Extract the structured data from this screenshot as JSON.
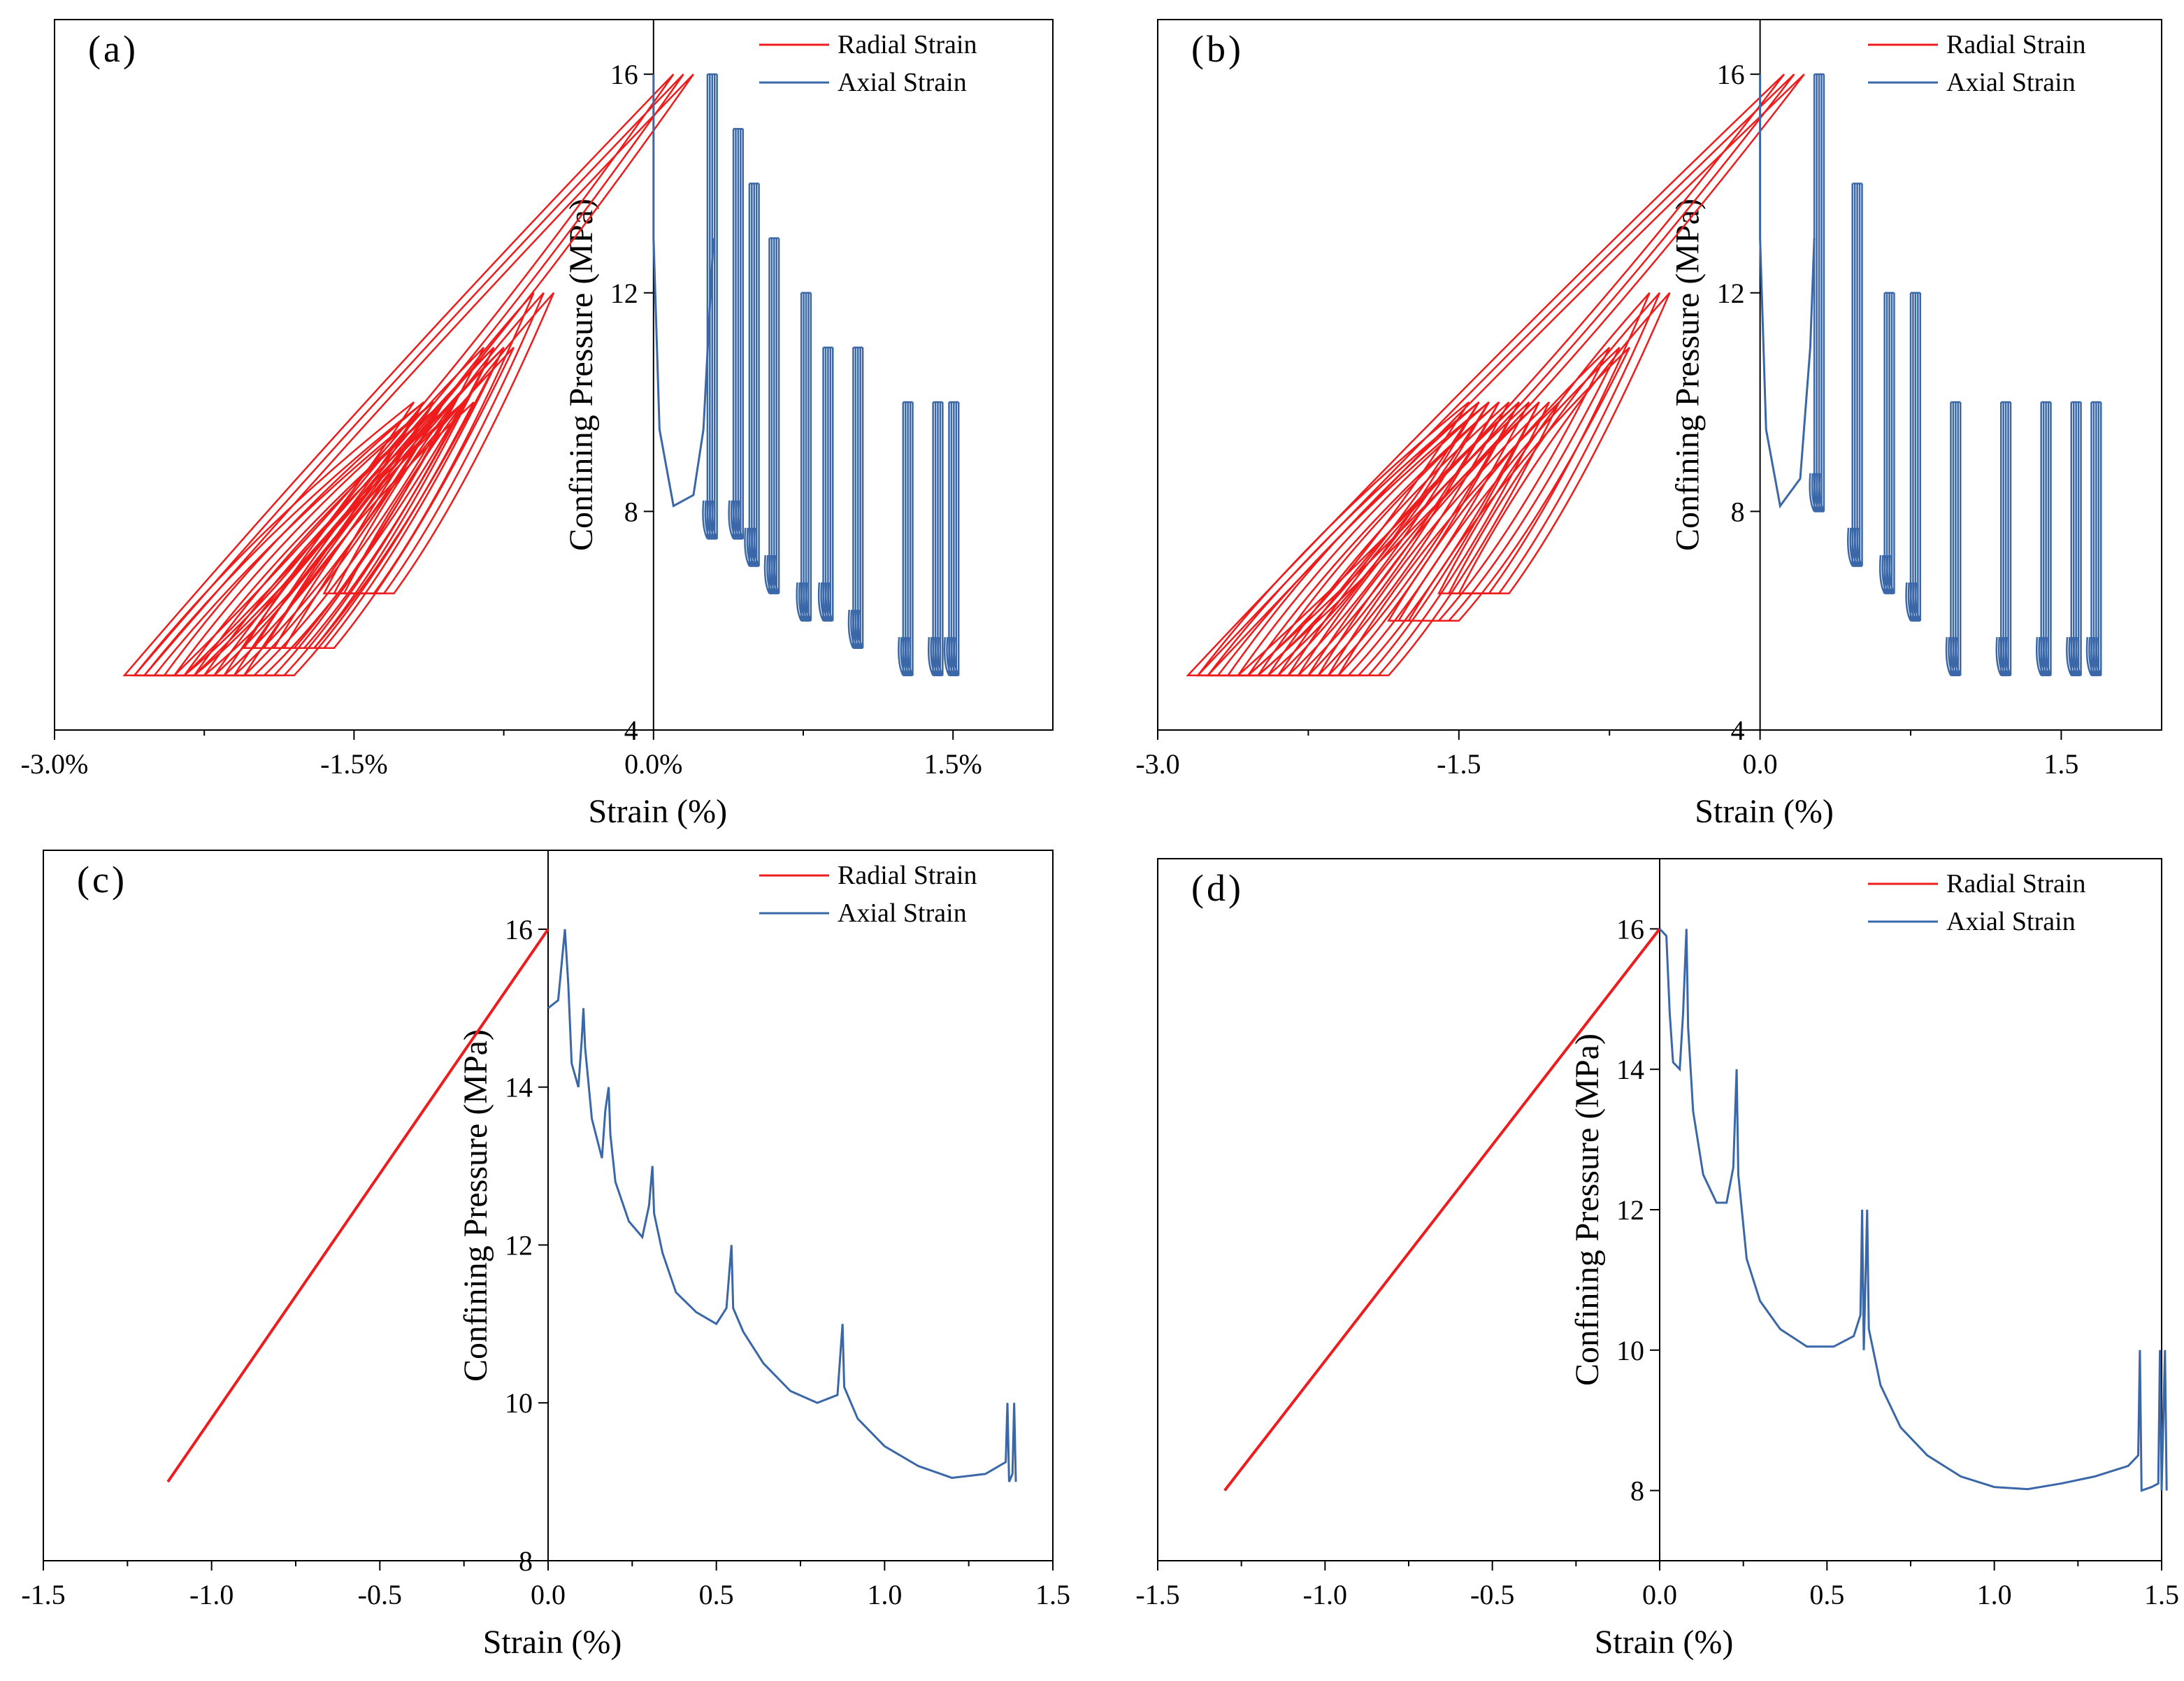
{
  "figure_caption": "",
  "chart_data": [
    {
      "panel_label": "(a)",
      "type": "line",
      "xlabel": "Strain (%)",
      "ylabel": "Confining Pressure (MPa)",
      "xlim": [
        -3.0,
        2.0
      ],
      "ylim": [
        4,
        17
      ],
      "xticks": [
        {
          "value": -3.0,
          "label": "-3.0%"
        },
        {
          "value": -1.5,
          "label": "-1.5%"
        },
        {
          "value": 0.0,
          "label": "0.0%"
        },
        {
          "value": 1.5,
          "label": "1.5%"
        }
      ],
      "yticks": [
        {
          "value": 4,
          "label": "4"
        },
        {
          "value": 8,
          "label": "8"
        },
        {
          "value": 12,
          "label": "12"
        },
        {
          "value": 16,
          "label": "16"
        }
      ],
      "colors": {
        "radial": "#ee1c1c",
        "axial": "#3a67a8"
      },
      "legend": {
        "position": "top-right",
        "entries": [
          "Radial Strain",
          "Axial Strain"
        ]
      },
      "series": [
        {
          "name": "Radial Strain",
          "cycles": [
            {
              "low": 5,
              "high": 16,
              "x_low": -2.65,
              "x_high": 0.1
            },
            {
              "low": 5,
              "high": 10,
              "x_low": -2.6,
              "x_high": -1.2
            },
            {
              "low": 5,
              "high": 10,
              "x_low": -2.45,
              "x_high": -1.15
            },
            {
              "low": 5,
              "high": 10,
              "x_low": -2.3,
              "x_high": -1.05
            },
            {
              "low": 5,
              "high": 10,
              "x_low": -2.15,
              "x_high": -1.0
            },
            {
              "low": 5.5,
              "high": 11,
              "x_low": -2.05,
              "x_high": -0.85
            },
            {
              "low": 5.5,
              "high": 11,
              "x_low": -1.95,
              "x_high": -0.8
            },
            {
              "low": 6.5,
              "high": 12,
              "x_low": -1.65,
              "x_high": -0.6
            }
          ]
        },
        {
          "name": "Axial Strain",
          "curve": [
            [
              0.0,
              16
            ],
            [
              0.0,
              13
            ],
            [
              0.03,
              9.5
            ],
            [
              0.1,
              8.1
            ],
            [
              0.2,
              8.3
            ],
            [
              0.25,
              9.5
            ],
            [
              0.3,
              13
            ]
          ],
          "cycles": [
            {
              "low": 7.5,
              "high": 16,
              "x_low": 0.27,
              "x_high": 0.32
            },
            {
              "low": 7.5,
              "high": 15,
              "x_low": 0.4,
              "x_high": 0.38
            },
            {
              "low": 7.0,
              "high": 14,
              "x_low": 0.48,
              "x_high": 0.46
            },
            {
              "low": 6.5,
              "high": 13,
              "x_low": 0.58,
              "x_high": 0.56
            },
            {
              "low": 6.0,
              "high": 12,
              "x_low": 0.74,
              "x_high": 0.7
            },
            {
              "low": 6.0,
              "high": 11,
              "x_low": 0.85,
              "x_high": 0.9
            },
            {
              "low": 5.5,
              "high": 11,
              "x_low": 1.0,
              "x_high": 1.05
            },
            {
              "low": 5.0,
              "high": 10,
              "x_low": 1.25,
              "x_high": 1.1
            },
            {
              "low": 5.0,
              "high": 10,
              "x_low": 1.4,
              "x_high": 1.25
            },
            {
              "low": 5.0,
              "high": 10,
              "x_low": 1.48,
              "x_high": 1.4
            }
          ]
        }
      ]
    },
    {
      "panel_label": "(b)",
      "type": "line",
      "xlabel": "Strain (%)",
      "ylabel": "Confining Pressure (MPa)",
      "xlim": [
        -3.0,
        2.0
      ],
      "ylim": [
        4,
        17
      ],
      "xticks": [
        {
          "value": -3.0,
          "label": "-3.0"
        },
        {
          "value": -1.5,
          "label": "-1.5"
        },
        {
          "value": 0.0,
          "label": "0.0"
        },
        {
          "value": 1.5,
          "label": "1.5"
        }
      ],
      "yticks": [
        {
          "value": 4,
          "label": "4"
        },
        {
          "value": 8,
          "label": "8"
        },
        {
          "value": 12,
          "label": "12"
        },
        {
          "value": 16,
          "label": "16"
        }
      ],
      "colors": {
        "radial": "#ee1c1c",
        "axial": "#3a67a8"
      },
      "legend": {
        "position": "top-right",
        "entries": [
          "Radial Strain",
          "Axial Strain"
        ]
      },
      "series": [
        {
          "name": "Radial Strain",
          "cycles": [
            {
              "low": 5,
              "high": 16,
              "x_low": -2.85,
              "x_high": 0.12
            },
            {
              "low": 5,
              "high": 10,
              "x_low": -2.8,
              "x_high": -1.45
            },
            {
              "low": 5,
              "high": 10,
              "x_low": -2.65,
              "x_high": -1.4
            },
            {
              "low": 5,
              "high": 10,
              "x_low": -2.5,
              "x_high": -1.3
            },
            {
              "low": 5,
              "high": 10,
              "x_low": -2.35,
              "x_high": -1.2
            },
            {
              "low": 5,
              "high": 10,
              "x_low": -2.2,
              "x_high": -1.1
            },
            {
              "low": 6,
              "high": 11,
              "x_low": -1.85,
              "x_high": -0.75
            },
            {
              "low": 6.5,
              "high": 12,
              "x_low": -1.6,
              "x_high": -0.55
            }
          ]
        },
        {
          "name": "Axial Strain",
          "curve": [
            [
              0.0,
              16
            ],
            [
              0.0,
              13
            ],
            [
              0.03,
              9.5
            ],
            [
              0.1,
              8.1
            ],
            [
              0.2,
              8.6
            ],
            [
              0.25,
              11
            ],
            [
              0.27,
              13
            ]
          ],
          "cycles": [
            {
              "low": 8.0,
              "high": 16,
              "x_low": 0.27,
              "x_high": 0.25
            },
            {
              "low": 7.0,
              "high": 14,
              "x_low": 0.46,
              "x_high": 0.44
            },
            {
              "low": 6.5,
              "high": 12,
              "x_low": 0.62,
              "x_high": 0.6
            },
            {
              "low": 6.0,
              "high": 12,
              "x_low": 0.75,
              "x_high": 0.72
            },
            {
              "low": 5.0,
              "high": 10,
              "x_low": 0.95,
              "x_high": 0.98
            },
            {
              "low": 5.0,
              "high": 10,
              "x_low": 1.2,
              "x_high": 1.1
            },
            {
              "low": 5.0,
              "high": 10,
              "x_low": 1.4,
              "x_high": 1.25
            },
            {
              "low": 5.0,
              "high": 10,
              "x_low": 1.55,
              "x_high": 1.4
            },
            {
              "low": 5.0,
              "high": 10,
              "x_low": 1.65,
              "x_high": 1.5
            }
          ]
        }
      ]
    },
    {
      "panel_label": "(c)",
      "type": "line",
      "xlabel": "Strain (%)",
      "ylabel": "Confining Pressure (MPa)",
      "xlim": [
        -1.5,
        1.5
      ],
      "ylim": [
        8,
        17
      ],
      "xticks": [
        {
          "value": -1.5,
          "label": "-1.5"
        },
        {
          "value": -1.0,
          "label": "-1.0"
        },
        {
          "value": -0.5,
          "label": "-0.5"
        },
        {
          "value": 0.0,
          "label": "0.0"
        },
        {
          "value": 0.5,
          "label": "0.5"
        },
        {
          "value": 1.0,
          "label": "1.0"
        },
        {
          "value": 1.5,
          "label": "1.5"
        }
      ],
      "yticks": [
        {
          "value": 8,
          "label": "8"
        },
        {
          "value": 10,
          "label": "10"
        },
        {
          "value": 12,
          "label": "12"
        },
        {
          "value": 14,
          "label": "14"
        },
        {
          "value": 16,
          "label": "16"
        }
      ],
      "colors": {
        "radial": "#ee1c1c",
        "axial": "#3a67a8"
      },
      "legend": {
        "position": "top-right",
        "entries": [
          "Radial Strain",
          "Axial Strain"
        ]
      },
      "series": [
        {
          "name": "Radial Strain",
          "line": [
            [
              -1.13,
              9.0
            ],
            [
              0.0,
              16.0
            ]
          ]
        },
        {
          "name": "Axial Strain",
          "points": [
            [
              0.0,
              15.0
            ],
            [
              0.03,
              15.1
            ],
            [
              0.05,
              16.0
            ],
            [
              0.06,
              15.3
            ],
            [
              0.07,
              14.3
            ],
            [
              0.09,
              14.0
            ],
            [
              0.1,
              14.6
            ],
            [
              0.105,
              15.0
            ],
            [
              0.11,
              14.5
            ],
            [
              0.13,
              13.6
            ],
            [
              0.16,
              13.1
            ],
            [
              0.17,
              13.7
            ],
            [
              0.18,
              14.0
            ],
            [
              0.185,
              13.4
            ],
            [
              0.2,
              12.8
            ],
            [
              0.24,
              12.3
            ],
            [
              0.28,
              12.1
            ],
            [
              0.3,
              12.5
            ],
            [
              0.31,
              13.0
            ],
            [
              0.315,
              12.4
            ],
            [
              0.34,
              11.9
            ],
            [
              0.38,
              11.4
            ],
            [
              0.44,
              11.15
            ],
            [
              0.5,
              11.0
            ],
            [
              0.53,
              11.2
            ],
            [
              0.545,
              12.0
            ],
            [
              0.55,
              11.2
            ],
            [
              0.58,
              10.9
            ],
            [
              0.64,
              10.5
            ],
            [
              0.72,
              10.15
            ],
            [
              0.8,
              10.0
            ],
            [
              0.86,
              10.1
            ],
            [
              0.875,
              11.0
            ],
            [
              0.88,
              10.2
            ],
            [
              0.92,
              9.8
            ],
            [
              1.0,
              9.45
            ],
            [
              1.1,
              9.2
            ],
            [
              1.2,
              9.05
            ],
            [
              1.3,
              9.1
            ],
            [
              1.36,
              9.25
            ],
            [
              1.365,
              10.0
            ],
            [
              1.37,
              9.0
            ],
            [
              1.38,
              9.1
            ],
            [
              1.385,
              10.0
            ],
            [
              1.39,
              9.0
            ]
          ]
        }
      ]
    },
    {
      "panel_label": "(d)",
      "type": "line",
      "xlabel": "Strain (%)",
      "ylabel": "Confining Pressure (MPa)",
      "xlim": [
        -1.5,
        1.5
      ],
      "ylim": [
        7,
        17
      ],
      "xticks": [
        {
          "value": -1.5,
          "label": "-1.5"
        },
        {
          "value": -1.0,
          "label": "-1.0"
        },
        {
          "value": -0.5,
          "label": "-0.5"
        },
        {
          "value": 0.0,
          "label": "0.0"
        },
        {
          "value": 0.5,
          "label": "0.5"
        },
        {
          "value": 1.0,
          "label": "1.0"
        },
        {
          "value": 1.5,
          "label": "1.5"
        }
      ],
      "yticks": [
        {
          "value": 8,
          "label": "8"
        },
        {
          "value": 10,
          "label": "10"
        },
        {
          "value": 12,
          "label": "12"
        },
        {
          "value": 14,
          "label": "14"
        },
        {
          "value": 16,
          "label": "16"
        }
      ],
      "colors": {
        "radial": "#ee1c1c",
        "axial": "#3a67a8"
      },
      "legend": {
        "position": "top-right",
        "entries": [
          "Radial Strain",
          "Axial Strain"
        ]
      },
      "series": [
        {
          "name": "Radial Strain",
          "line": [
            [
              -1.3,
              8.0
            ],
            [
              0.0,
              16.0
            ]
          ]
        },
        {
          "name": "Axial Strain",
          "points": [
            [
              0.0,
              16.0
            ],
            [
              0.02,
              15.9
            ],
            [
              0.03,
              14.8
            ],
            [
              0.04,
              14.1
            ],
            [
              0.06,
              14.0
            ],
            [
              0.07,
              14.8
            ],
            [
              0.08,
              16.0
            ],
            [
              0.085,
              14.6
            ],
            [
              0.1,
              13.4
            ],
            [
              0.13,
              12.5
            ],
            [
              0.17,
              12.1
            ],
            [
              0.2,
              12.1
            ],
            [
              0.22,
              12.6
            ],
            [
              0.23,
              14.0
            ],
            [
              0.235,
              12.5
            ],
            [
              0.26,
              11.3
            ],
            [
              0.3,
              10.7
            ],
            [
              0.36,
              10.3
            ],
            [
              0.44,
              10.05
            ],
            [
              0.52,
              10.05
            ],
            [
              0.58,
              10.2
            ],
            [
              0.6,
              10.5
            ],
            [
              0.605,
              12.0
            ],
            [
              0.61,
              10.0
            ],
            [
              0.62,
              12.0
            ],
            [
              0.625,
              10.3
            ],
            [
              0.66,
              9.5
            ],
            [
              0.72,
              8.9
            ],
            [
              0.8,
              8.5
            ],
            [
              0.9,
              8.2
            ],
            [
              1.0,
              8.05
            ],
            [
              1.1,
              8.02
            ],
            [
              1.2,
              8.1
            ],
            [
              1.3,
              8.2
            ],
            [
              1.4,
              8.35
            ],
            [
              1.43,
              8.5
            ],
            [
              1.435,
              10.0
            ],
            [
              1.44,
              8.0
            ],
            [
              1.47,
              8.05
            ],
            [
              1.49,
              8.1
            ],
            [
              1.495,
              10.0
            ],
            [
              1.5,
              8.0
            ],
            [
              1.51,
              10.0
            ],
            [
              1.515,
              8.0
            ]
          ]
        }
      ]
    }
  ]
}
